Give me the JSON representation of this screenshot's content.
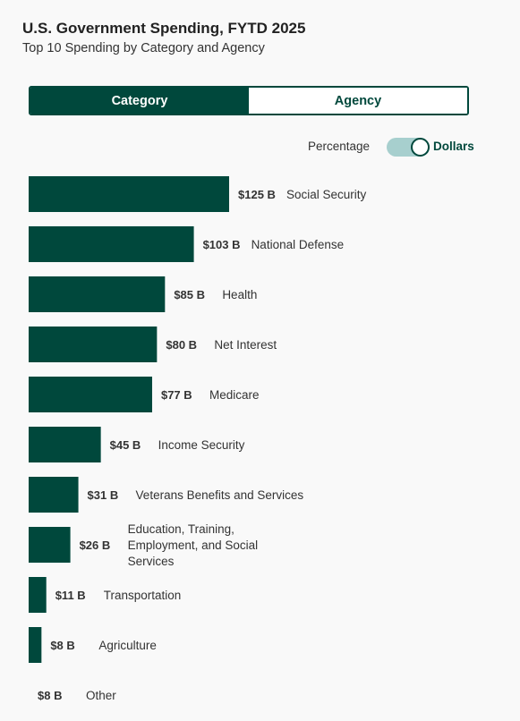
{
  "header": {
    "title": "U.S. Government Spending, FYTD 2025",
    "subtitle": "Top 10 Spending by Category and Agency"
  },
  "tabs": [
    {
      "label": "Category",
      "active": true
    },
    {
      "label": "Agency",
      "active": false
    }
  ],
  "toggle": {
    "left_label": "Percentage",
    "right_label": "Dollars",
    "selected": "Dollars"
  },
  "colors": {
    "accent": "#00483c",
    "toggle_track": "#a7cfce"
  },
  "chart_data": {
    "type": "bar",
    "orientation": "horizontal",
    "unit": "B",
    "categories": [
      "Social Security",
      "National Defense",
      "Health",
      "Net Interest",
      "Medicare",
      "Income Security",
      "Veterans Benefits and Services",
      "Education, Training, Employment, and Social Services",
      "Transportation",
      "Agriculture",
      "Other"
    ],
    "category_lines": [
      [
        "Social Security"
      ],
      [
        "National Defense"
      ],
      [
        "Health"
      ],
      [
        "Net Interest"
      ],
      [
        "Medicare"
      ],
      [
        "Income Security"
      ],
      [
        "Veterans Benefits and Services"
      ],
      [
        "Education, Training,",
        "Employment, and Social",
        "Services"
      ],
      [
        "Transportation"
      ],
      [
        "Agriculture"
      ],
      [
        "Other"
      ]
    ],
    "values": [
      125,
      103,
      85,
      80,
      77,
      45,
      31,
      26,
      11,
      8,
      8
    ],
    "value_labels": [
      "$125 B",
      "$103 B",
      "$85 B",
      "$80 B",
      "$77 B",
      "$45 B",
      "$31 B",
      "$26 B",
      "$11 B",
      "$8 B",
      "$8 B"
    ],
    "bar_visible": [
      true,
      true,
      true,
      true,
      true,
      true,
      true,
      true,
      true,
      true,
      false
    ],
    "xlim": [
      0,
      125
    ],
    "grid": false
  }
}
